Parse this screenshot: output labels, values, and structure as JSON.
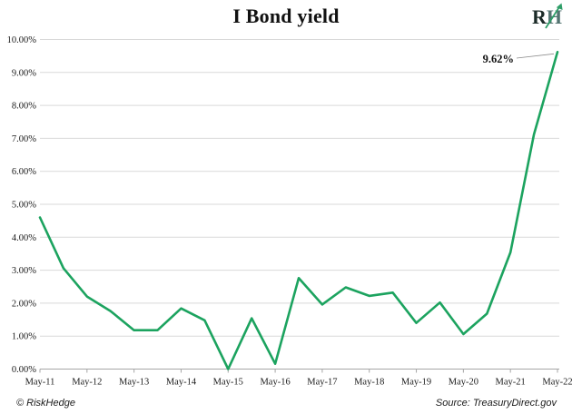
{
  "header": {
    "logo": {
      "r": "R",
      "h": "H"
    }
  },
  "footer": {
    "left": "© RiskHedge",
    "right": "Source: TreasuryDirect.gov"
  },
  "chart_data": {
    "type": "line",
    "title": "I Bond yield",
    "x": [
      "May-11",
      "Nov-11",
      "May-12",
      "Nov-12",
      "May-13",
      "Nov-13",
      "May-14",
      "Nov-14",
      "May-15",
      "Nov-15",
      "May-16",
      "Nov-16",
      "May-17",
      "Nov-17",
      "May-18",
      "Nov-18",
      "May-19",
      "Nov-19",
      "May-20",
      "Nov-20",
      "May-21",
      "Nov-21",
      "May-22"
    ],
    "values": [
      4.6,
      3.06,
      2.2,
      1.76,
      1.18,
      1.18,
      1.84,
      1.48,
      0.0,
      1.54,
      0.16,
      2.76,
      1.96,
      2.48,
      2.22,
      2.32,
      1.4,
      2.02,
      1.06,
      1.68,
      3.54,
      7.12,
      9.62
    ],
    "x_tick_labels": [
      "May-11",
      "May-12",
      "May-13",
      "May-14",
      "May-15",
      "May-16",
      "May-17",
      "May-18",
      "May-19",
      "May-20",
      "May-21",
      "May-22"
    ],
    "y_tick_labels": [
      "0.00%",
      "1.00%",
      "2.00%",
      "3.00%",
      "4.00%",
      "5.00%",
      "6.00%",
      "7.00%",
      "8.00%",
      "9.00%",
      "10.00%"
    ],
    "ylim": [
      0,
      10
    ],
    "grid": true,
    "legend": "none",
    "annotation": {
      "text": "9.62%",
      "target_index": 22
    },
    "colors": {
      "line": "#1CA35F",
      "grid": "#D9D9D9",
      "axis": "#A6A6A6",
      "tick_text": "#1A1A1A",
      "annotation_text": "#111111",
      "leader_line": "#8C8C8C",
      "logo_letter_r": "#1C2B28",
      "logo_letter_h": "#527370",
      "logo_arrow": "#2E9E68"
    }
  }
}
